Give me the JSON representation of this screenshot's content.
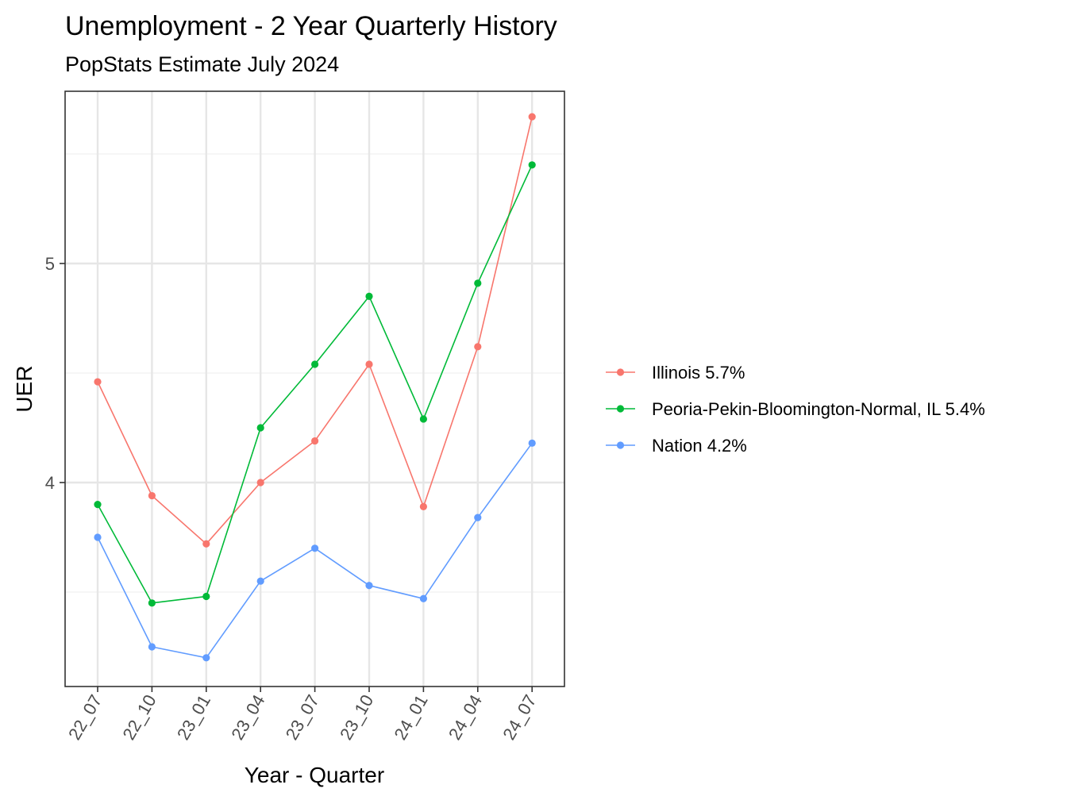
{
  "chart_data": {
    "type": "line",
    "title": "Unemployment - 2 Year Quarterly History",
    "subtitle": "PopStats Estimate July 2024",
    "xlabel": "Year - Quarter",
    "ylabel": "UER",
    "categories": [
      "22_07",
      "22_10",
      "23_01",
      "23_04",
      "23_07",
      "23_10",
      "24_01",
      "24_04",
      "24_07"
    ],
    "yticks": [
      4,
      5
    ],
    "ylim": [
      3.1,
      5.8
    ],
    "grid": true,
    "legend_position": "right",
    "series": [
      {
        "name": "Illinois 5.7%",
        "color": "#F8766D",
        "values": [
          4.46,
          3.94,
          3.72,
          4.0,
          4.19,
          4.54,
          3.89,
          4.62,
          5.67
        ]
      },
      {
        "name": "Peoria-Pekin-Bloomington-Normal, IL 5.4%",
        "color": "#00BA38",
        "values": [
          3.9,
          3.45,
          3.48,
          4.25,
          4.54,
          4.85,
          4.29,
          4.91,
          5.45
        ]
      },
      {
        "name": "Nation 4.2%",
        "color": "#619CFF",
        "values": [
          3.75,
          3.25,
          3.2,
          3.55,
          3.7,
          3.53,
          3.47,
          3.84,
          4.18
        ]
      }
    ]
  }
}
